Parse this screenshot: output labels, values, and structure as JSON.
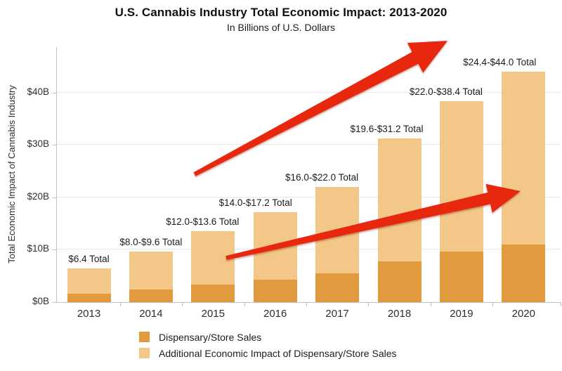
{
  "title": "U.S. Cannabis Industry Total Economic Impact: 2013-2020",
  "subtitle": "In Billions of U.S. Dollars",
  "y_axis_label": "Total Economic Impact of Cannabis Industry",
  "legend": [
    {
      "label": "Dispensary/Store Sales",
      "color": "#E19A3E"
    },
    {
      "label": "Additional Economic Impact of Dispensary/Store Sales",
      "color": "#F2C787"
    }
  ],
  "chart_data": {
    "type": "bar",
    "stacked": true,
    "title": "U.S. Cannabis Industry Total Economic Impact: 2013-2020",
    "subtitle": "In Billions of U.S. Dollars",
    "ylabel": "Total Economic Impact of Cannabis Industry",
    "xlabel": "",
    "categories": [
      "2013",
      "2014",
      "2015",
      "2016",
      "2017",
      "2018",
      "2019",
      "2020"
    ],
    "series": [
      {
        "name": "Dispensary/Store Sales",
        "color": "#E19A3E",
        "values": [
          1.6,
          2.4,
          3.4,
          4.3,
          5.5,
          7.8,
          9.6,
          11.0
        ]
      },
      {
        "name": "Additional Economic Impact of Dispensary/Store Sales",
        "color": "#F2C787",
        "values": [
          4.8,
          7.2,
          10.2,
          12.9,
          16.5,
          23.4,
          28.8,
          33.0
        ]
      }
    ],
    "bar_totals": [
      6.4,
      9.6,
      13.6,
      17.2,
      22.0,
      31.2,
      38.4,
      44.0
    ],
    "total_labels": [
      "$6.4 Total",
      "$8.0-$9.6 Total",
      "$12.0-$13.6 Total",
      "$14.0-$17.2 Total",
      "$16.0-$22.0 Total",
      "$19.6-$31.2 Total",
      "$22.0-$38.4 Total",
      "$24.4-$44.0 Total"
    ],
    "y_ticks": [
      {
        "value": 0,
        "label": "$0B"
      },
      {
        "value": 10,
        "label": "$10B"
      },
      {
        "value": 20,
        "label": "$20B"
      },
      {
        "value": 30,
        "label": "$30B"
      },
      {
        "value": 40,
        "label": "$40B"
      }
    ],
    "ylim": [
      0,
      48.7
    ],
    "grid": true,
    "legend_position": "bottom",
    "annotations": [
      {
        "type": "arrow",
        "from": [
          277,
          248
        ],
        "to": [
          637,
          58
        ],
        "color": "#E8280E"
      },
      {
        "type": "arrow",
        "from": [
          322,
          367
        ],
        "to": [
          741,
          272
        ],
        "color": "#E8280E"
      }
    ]
  }
}
